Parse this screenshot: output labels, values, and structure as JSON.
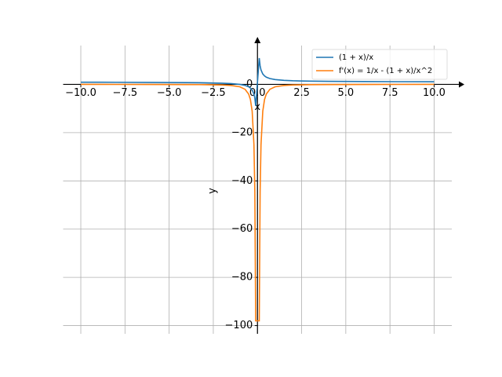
{
  "chart_data": {
    "type": "line",
    "x_label": "x",
    "y_label": "y",
    "x": [
      -10,
      -8,
      -6,
      -4,
      -3,
      -2,
      -1.5,
      -1,
      -0.7,
      -0.5,
      -0.4,
      -0.3,
      -0.2,
      -0.15,
      -0.101,
      0.101,
      0.15,
      0.2,
      0.3,
      0.4,
      0.5,
      0.7,
      1,
      1.5,
      2,
      3,
      4,
      6,
      8,
      10
    ],
    "series": [
      {
        "name": "(1 + x)/x",
        "color": "#1f77b4",
        "values": [
          0.9,
          0.875,
          0.833,
          0.75,
          0.667,
          0.5,
          0.333,
          0,
          -0.429,
          -1,
          -1.5,
          -2.333,
          -4,
          -5.667,
          -8.901,
          10.901,
          7.667,
          6,
          4.333,
          3.5,
          3,
          2.429,
          2,
          1.667,
          1.5,
          1.333,
          1.25,
          1.167,
          1.125,
          1.1
        ]
      },
      {
        "name": "f'(x) = 1/x - (1 + x)/x^2",
        "color": "#ff7f0e",
        "values": [
          -0.01,
          -0.016,
          -0.028,
          -0.063,
          -0.111,
          -0.25,
          -0.444,
          -1,
          -2.041,
          -4,
          -6.25,
          -11.111,
          -25,
          -44.444,
          -98.03,
          -98.03,
          -44.444,
          -25,
          -11.111,
          -6.25,
          -4,
          -2.041,
          -1,
          -0.444,
          -0.25,
          -0.111,
          -0.063,
          -0.028,
          -0.016,
          -0.01
        ]
      }
    ],
    "xlim": [
      -11,
      11
    ],
    "ylim": [
      -103.4,
      16.1
    ],
    "xticks": [
      {
        "value": -10,
        "label": "−10.0"
      },
      {
        "value": -7.5,
        "label": "−7.5"
      },
      {
        "value": -5,
        "label": "−5.0"
      },
      {
        "value": -2.5,
        "label": "−2.5"
      },
      {
        "value": 0,
        "label": "0.0"
      },
      {
        "value": 2.5,
        "label": "2.5"
      },
      {
        "value": 5,
        "label": "5.0"
      },
      {
        "value": 7.5,
        "label": "7.5"
      },
      {
        "value": 10,
        "label": "10.0"
      }
    ],
    "yticks": [
      {
        "value": -100,
        "label": "−100"
      },
      {
        "value": -80,
        "label": "−80"
      },
      {
        "value": -60,
        "label": "−60"
      },
      {
        "value": -40,
        "label": "−40"
      },
      {
        "value": -20,
        "label": "−20"
      },
      0
    ],
    "grid": true,
    "legend": "upper right"
  }
}
